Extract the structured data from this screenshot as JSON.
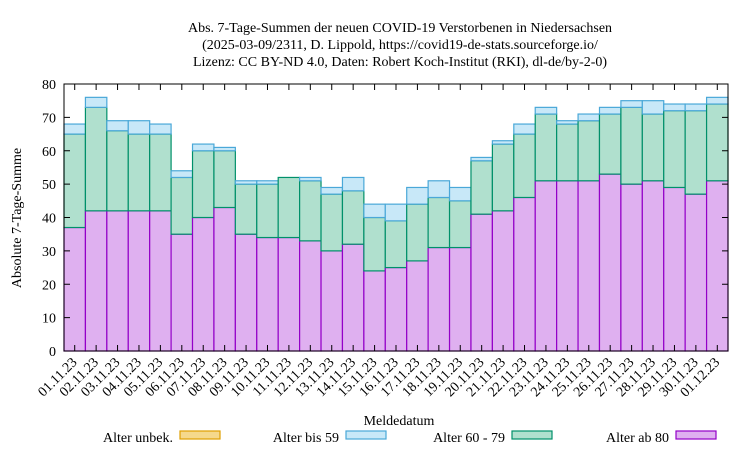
{
  "chart_data": {
    "type": "bar",
    "stacked": true,
    "title": [
      "Abs. 7-Tage-Summen der neuen COVID-19 Verstorbenen in Niedersachsen",
      "(2025-03-09/2311, D. Lippold, https://covid19-de-stats.sourceforge.io/",
      "Lizenz: CC BY-ND 4.0, Daten: Robert Koch-Institut (RKI), dl-de/by-2-0)"
    ],
    "xlabel": "Meldedatum",
    "ylabel": "Absolute 7-Tage-Summe",
    "ylim": [
      0,
      80
    ],
    "yticks": [
      0,
      10,
      20,
      30,
      40,
      50,
      60,
      70,
      80
    ],
    "grid": false,
    "legend_position": "bottom",
    "categories": [
      "01.11.23",
      "02.11.23",
      "03.11.23",
      "04.11.23",
      "05.11.23",
      "06.11.23",
      "07.11.23",
      "08.11.23",
      "09.11.23",
      "10.11.23",
      "11.11.23",
      "12.11.23",
      "13.11.23",
      "14.11.23",
      "15.11.23",
      "16.11.23",
      "17.11.23",
      "18.11.23",
      "19.11.23",
      "20.11.23",
      "21.11.23",
      "22.11.23",
      "23.11.23",
      "24.11.23",
      "25.11.23",
      "26.11.23",
      "27.11.23",
      "28.11.23",
      "29.11.23",
      "30.11.23",
      "01.12.23"
    ],
    "series": [
      {
        "name": "Alter unbek.",
        "color": "#f5d98c",
        "stroke": "#e0a000",
        "values": [
          0,
          0,
          0,
          0,
          0,
          0,
          0,
          0,
          0,
          0,
          0,
          0,
          0,
          0,
          0,
          0,
          0,
          0,
          0,
          0,
          0,
          0,
          0,
          0,
          0,
          0,
          0,
          0,
          0,
          0,
          0
        ]
      },
      {
        "name": "Alter ab 80",
        "color": "#dfb0f0",
        "stroke": "#9400c8",
        "values": [
          37,
          42,
          42,
          42,
          42,
          35,
          40,
          43,
          35,
          34,
          34,
          33,
          30,
          32,
          24,
          25,
          27,
          31,
          31,
          41,
          42,
          46,
          51,
          51,
          51,
          53,
          50,
          51,
          49,
          47,
          51
        ]
      },
      {
        "name": "Alter 60 - 79",
        "color": "#b0e0ce",
        "stroke": "#00906a",
        "values": [
          28,
          31,
          24,
          23,
          23,
          17,
          20,
          17,
          15,
          16,
          18,
          18,
          17,
          16,
          16,
          14,
          17,
          15,
          14,
          16,
          20,
          19,
          20,
          17,
          18,
          18,
          23,
          20,
          23,
          25,
          23
        ]
      },
      {
        "name": "Alter bis 59",
        "color": "#c8e8f8",
        "stroke": "#4aa8d8",
        "values": [
          3,
          3,
          3,
          4,
          3,
          2,
          2,
          1,
          1,
          1,
          0,
          1,
          2,
          4,
          4,
          5,
          5,
          5,
          4,
          1,
          1,
          3,
          2,
          1,
          2,
          2,
          2,
          4,
          2,
          2,
          2
        ]
      }
    ],
    "legend_order": [
      "Alter unbek.",
      "Alter bis 59",
      "Alter 60 - 79",
      "Alter ab 80"
    ]
  }
}
